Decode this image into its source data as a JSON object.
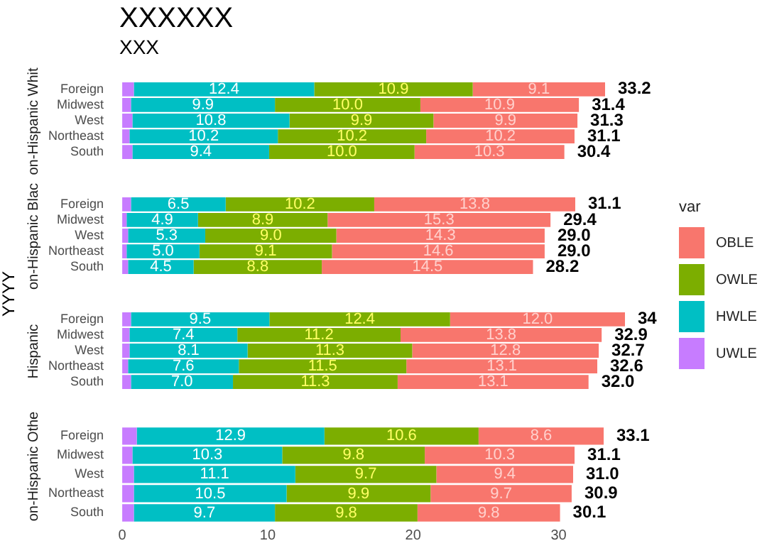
{
  "chart_data": [
    {
      "type": "bar",
      "orientation": "horizontal",
      "stacked": true,
      "title": "XXXXXX",
      "subtitle": "XXX",
      "ylabel": "on-Hispanic Whit",
      "annotations": [
        "YYYY"
      ],
      "legend": "right",
      "legend_title": "var",
      "grid": false,
      "tick_labels": "y",
      "xlim": [
        -0.2,
        33.2
      ],
      "xticks": [
        0,
        10,
        20,
        30
      ],
      "categories": [
        "Foreign",
        "Midwest",
        "West",
        "Northeast",
        "South"
      ],
      "series": [
        {
          "name": "UWLE",
          "color": "#c77cff",
          "values": [
            0.8,
            0.6,
            0.7,
            0.5,
            0.7
          ]
        },
        {
          "name": "HWLE",
          "color": "#00bfc4",
          "values": [
            12.4,
            9.9,
            10.8,
            10.2,
            9.4
          ],
          "value_labels": [
            "12.4",
            "9.9",
            "10.8",
            "10.2",
            "9.4"
          ]
        },
        {
          "name": "OWLE",
          "color": "#7cae00",
          "values": [
            10.9,
            10.0,
            9.9,
            10.2,
            10.0
          ],
          "value_labels": [
            "10.9",
            "10.0",
            "9.9",
            "10.2",
            "10.0"
          ]
        },
        {
          "name": "OBLE",
          "color": "#f8766d",
          "values": [
            9.1,
            10.9,
            9.9,
            10.2,
            10.3
          ],
          "value_labels": [
            "9.1",
            "10.9",
            "9.9",
            "10.2",
            "10.3"
          ]
        }
      ],
      "totals": [
        "33.2",
        "31.4",
        "31.3",
        "31.1",
        "30.4"
      ]
    },
    {
      "type": "bar",
      "orientation": "horizontal",
      "stacked": true,
      "ylabel": "on-Hispanic Blac",
      "grid": false,
      "tick_labels": "y",
      "xlim": [
        -0.2,
        31.1
      ],
      "xticks": [
        0,
        10,
        20,
        30
      ],
      "categories": [
        "Foreign",
        "Midwest",
        "West",
        "Northeast",
        "South"
      ],
      "series": [
        {
          "color": "#c77cff",
          "values": [
            0.6,
            0.3,
            0.4,
            0.3,
            0.4
          ]
        },
        {
          "color": "#00bfc4",
          "values": [
            6.5,
            4.9,
            5.3,
            5.0,
            4.5
          ],
          "value_labels": [
            "6.5",
            "4.9",
            "5.3",
            "5.0",
            "4.5"
          ]
        },
        {
          "color": "#7cae00",
          "values": [
            10.2,
            8.9,
            9.0,
            9.1,
            8.8
          ],
          "value_labels": [
            "10.2",
            "8.9",
            "9.0",
            "9.1",
            "8.8"
          ]
        },
        {
          "color": "#f8766d",
          "values": [
            13.8,
            15.3,
            14.3,
            14.6,
            14.5
          ],
          "value_labels": [
            "13.8",
            "15.3",
            "14.3",
            "14.6",
            "14.5"
          ]
        }
      ],
      "totals": [
        "31.1",
        "29.4",
        "29.0",
        "29.0",
        "28.2"
      ]
    },
    {
      "type": "bar",
      "orientation": "horizontal",
      "stacked": true,
      "ylabel": "Hispanic",
      "grid": false,
      "tick_labels": "y",
      "xlim": [
        -0.2,
        34.5
      ],
      "xticks": [
        0,
        10,
        20,
        30
      ],
      "categories": [
        "Foreign",
        "Midwest",
        "West",
        "Northeast",
        "South"
      ],
      "series": [
        {
          "color": "#c77cff",
          "values": [
            0.6,
            0.5,
            0.5,
            0.4,
            0.6
          ]
        },
        {
          "color": "#00bfc4",
          "values": [
            9.5,
            7.4,
            8.1,
            7.6,
            7.0
          ],
          "value_labels": [
            "9.5",
            "7.4",
            "8.1",
            "7.6",
            "7.0"
          ]
        },
        {
          "color": "#7cae00",
          "values": [
            12.4,
            11.2,
            11.3,
            11.5,
            11.3
          ],
          "value_labels": [
            "12.4",
            "11.2",
            "11.3",
            "11.5",
            "11.3"
          ]
        },
        {
          "color": "#f8766d",
          "values": [
            12.0,
            13.8,
            12.8,
            13.1,
            13.1
          ],
          "value_labels": [
            "12.0",
            "13.8",
            "12.8",
            "13.1",
            "13.1"
          ]
        }
      ],
      "totals": [
        "34",
        "32.9",
        "32.7",
        "32.6",
        "32.0"
      ]
    },
    {
      "type": "bar",
      "orientation": "horizontal",
      "stacked": true,
      "ylabel": "on-Hispanic Othe",
      "grid": false,
      "xlim": [
        -0.2,
        33.1
      ],
      "xticks": [
        0,
        10,
        20,
        30
      ],
      "categories": [
        "Foreign",
        "Midwest",
        "West",
        "Northeast",
        "South"
      ],
      "series": [
        {
          "color": "#c77cff",
          "values": [
            1.0,
            0.7,
            0.8,
            0.8,
            0.8
          ]
        },
        {
          "color": "#00bfc4",
          "values": [
            12.9,
            10.3,
            11.1,
            10.5,
            9.7
          ],
          "value_labels": [
            "12.9",
            "10.3",
            "11.1",
            "10.5",
            "9.7"
          ]
        },
        {
          "color": "#7cae00",
          "values": [
            10.6,
            9.8,
            9.7,
            9.9,
            9.8
          ],
          "value_labels": [
            "10.6",
            "9.8",
            "9.7",
            "9.9",
            "9.8"
          ]
        },
        {
          "color": "#f8766d",
          "values": [
            8.6,
            10.3,
            9.4,
            9.7,
            9.8
          ],
          "value_labels": [
            "8.6",
            "10.3",
            "9.4",
            "9.7",
            "9.8"
          ]
        }
      ],
      "totals": [
        "33.1",
        "31.1",
        "31.0",
        "30.9",
        "30.1"
      ]
    }
  ]
}
